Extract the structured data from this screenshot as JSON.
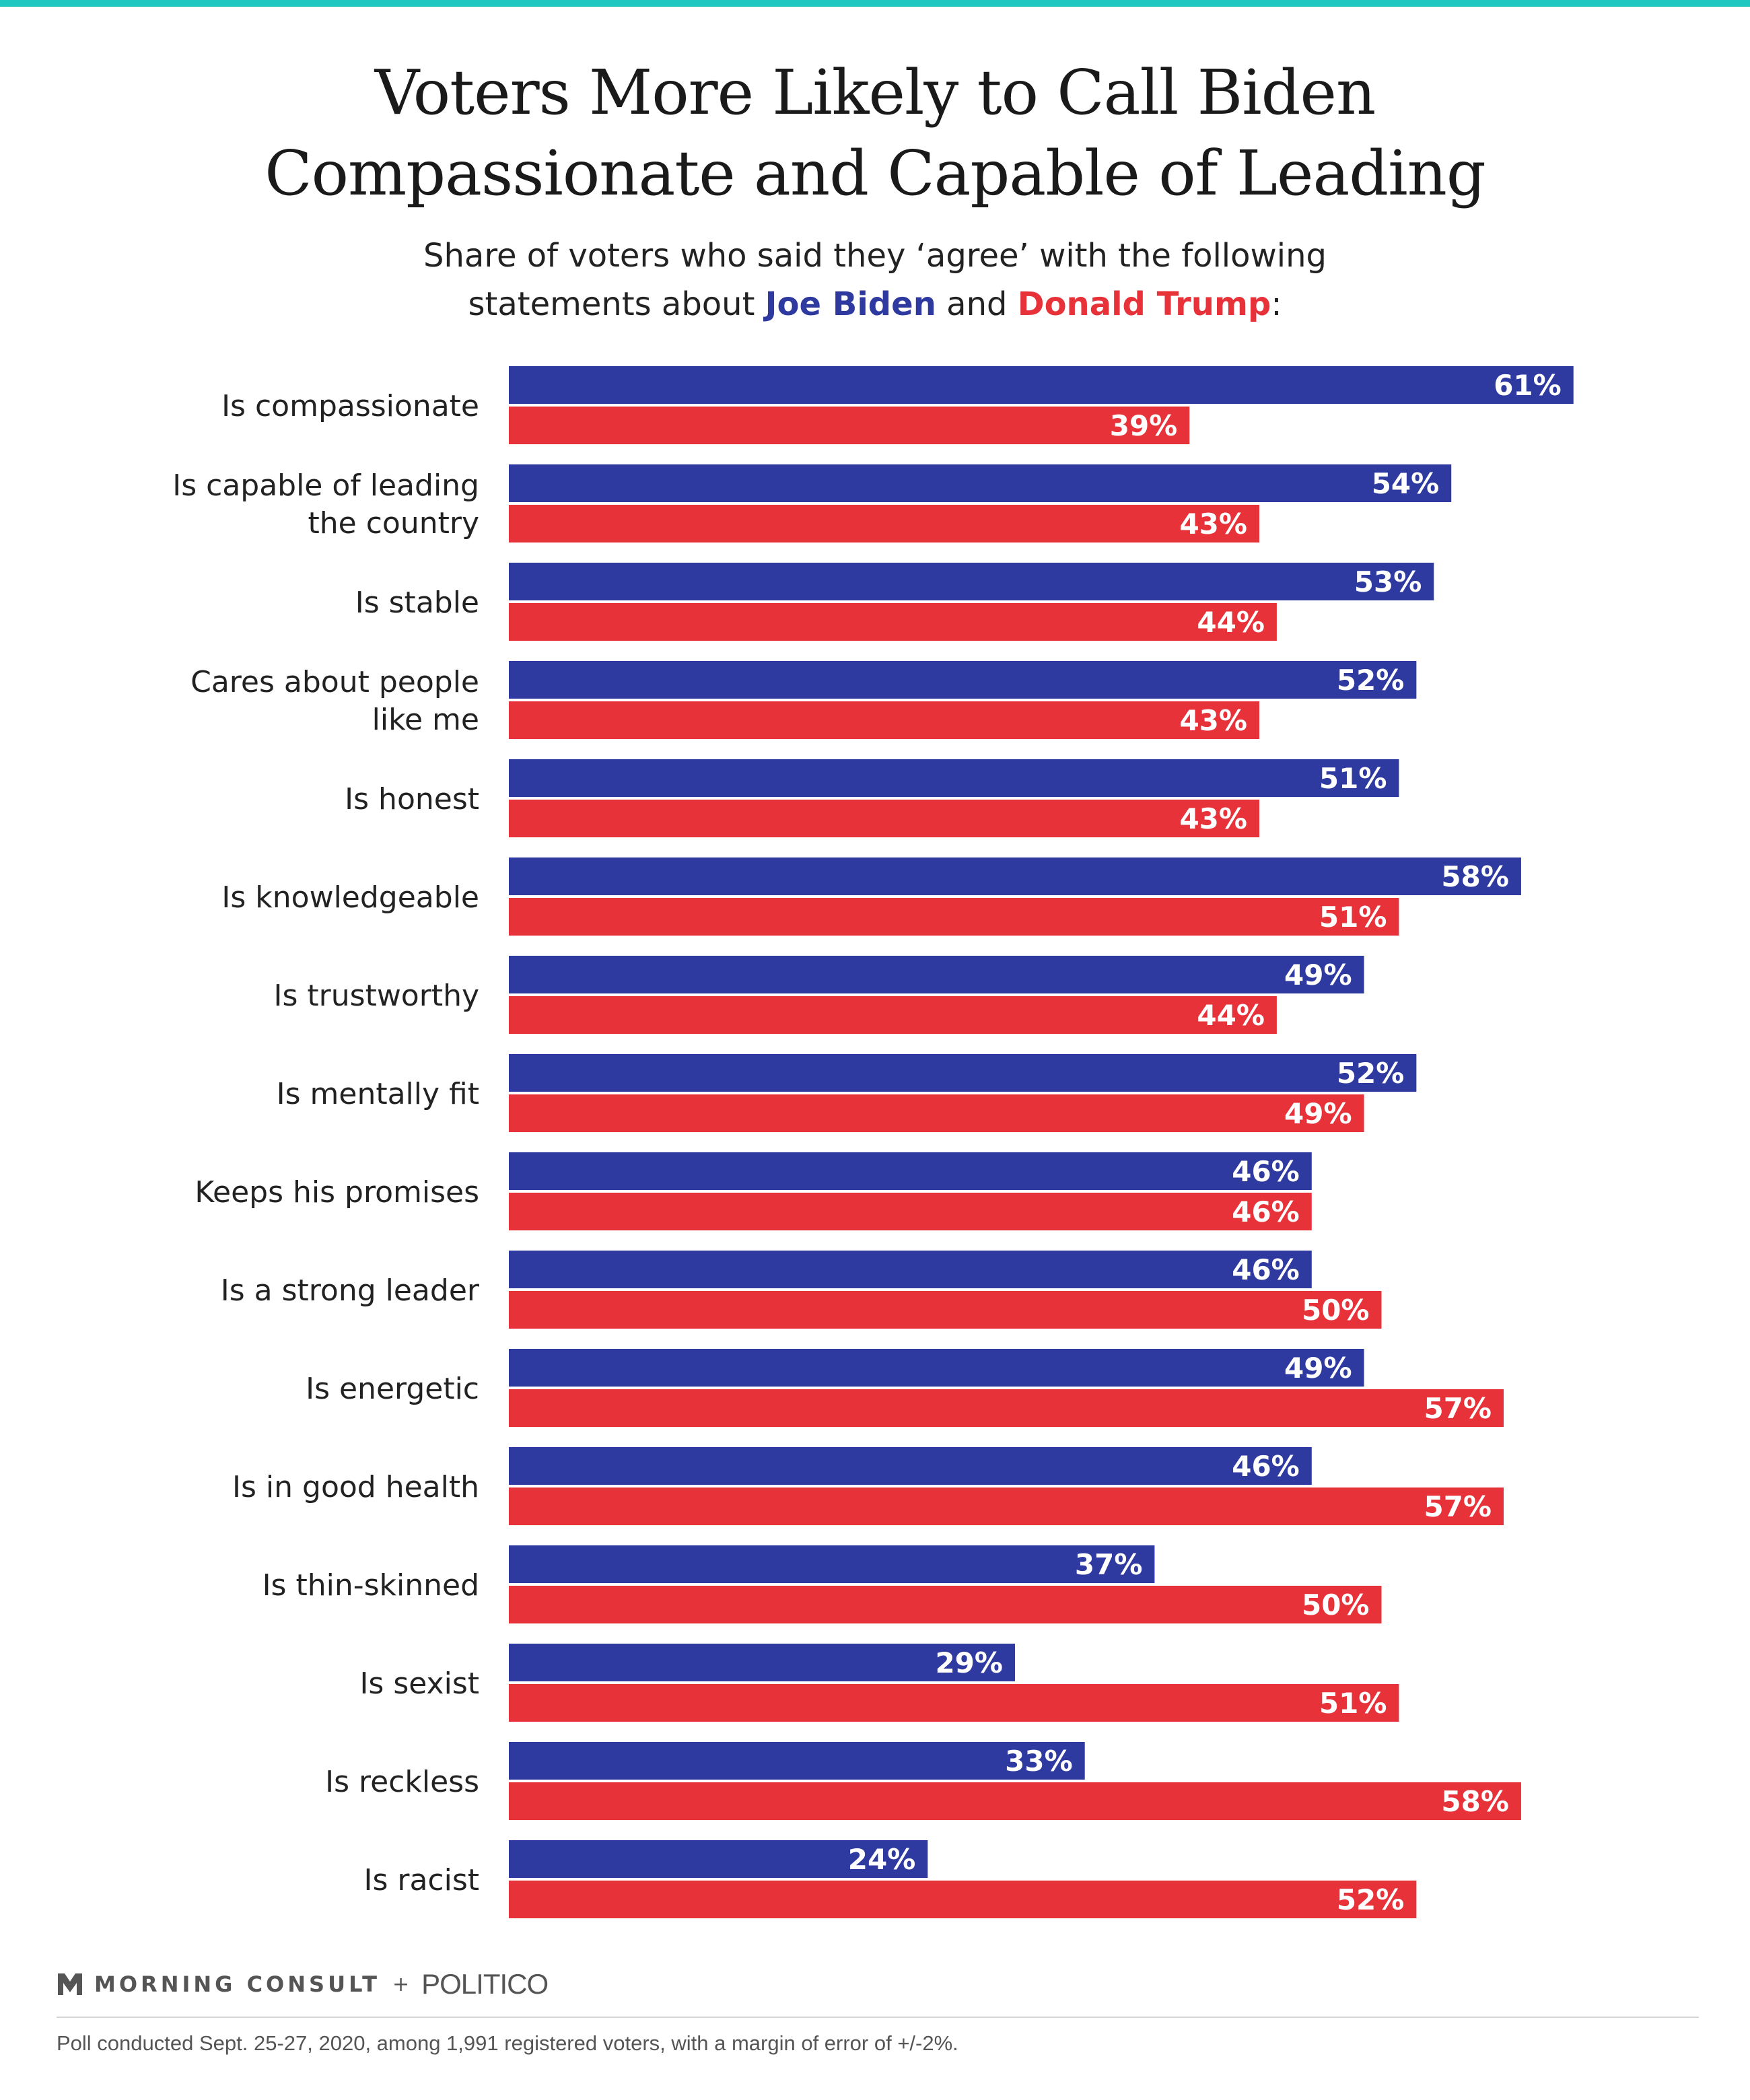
{
  "header": {
    "title_line1": "Voters More Likely to Call Biden",
    "title_line2": "Compassionate and Capable of Leading",
    "subtitle_line1": "Share of voters who said they ‘agree’ with the following",
    "subtitle_prefix": "statements about ",
    "subtitle_biden": "Joe Biden",
    "subtitle_and": " and ",
    "subtitle_trump": "Donald Trump",
    "subtitle_suffix": ":"
  },
  "colors": {
    "accent_top": "#1ec8c0",
    "biden": "#2e3aa0",
    "trump": "#e8323a"
  },
  "chart_data": {
    "type": "bar",
    "orientation": "horizontal",
    "title": "Voters More Likely to Call Biden Compassionate and Capable of Leading",
    "subtitle": "Share of voters who said they ‘agree’ with the following statements about Joe Biden and Donald Trump:",
    "value_format": "percent",
    "xlim": [
      0,
      100
    ],
    "grid": false,
    "categories": [
      [
        "Is compassionate"
      ],
      [
        "Is capable of leading",
        "the country"
      ],
      [
        "Is stable"
      ],
      [
        "Cares about people",
        "like me"
      ],
      [
        "Is honest"
      ],
      [
        "Is knowledgeable"
      ],
      [
        "Is trustworthy"
      ],
      [
        "Is mentally fit"
      ],
      [
        "Keeps his promises"
      ],
      [
        "Is a strong leader"
      ],
      [
        "Is energetic"
      ],
      [
        "Is in good health"
      ],
      [
        "Is thin-skinned"
      ],
      [
        "Is sexist"
      ],
      [
        "Is reckless"
      ],
      [
        "Is racist"
      ]
    ],
    "series": [
      {
        "name": "Joe Biden",
        "color": "#2e3aa0",
        "values": [
          61,
          54,
          53,
          52,
          51,
          58,
          49,
          52,
          46,
          46,
          49,
          46,
          37,
          29,
          33,
          24
        ]
      },
      {
        "name": "Donald Trump",
        "color": "#e8323a",
        "values": [
          39,
          43,
          44,
          43,
          43,
          51,
          44,
          49,
          46,
          50,
          57,
          57,
          50,
          51,
          58,
          52
        ]
      }
    ]
  },
  "footer": {
    "brand_morning_consult": "MORNING CONSULT",
    "brand_plus": "+",
    "brand_politico": "POLITICO",
    "note": "Poll conducted Sept. 25-27, 2020, among 1,991 registered voters, with a margin of error of +/-2%."
  }
}
